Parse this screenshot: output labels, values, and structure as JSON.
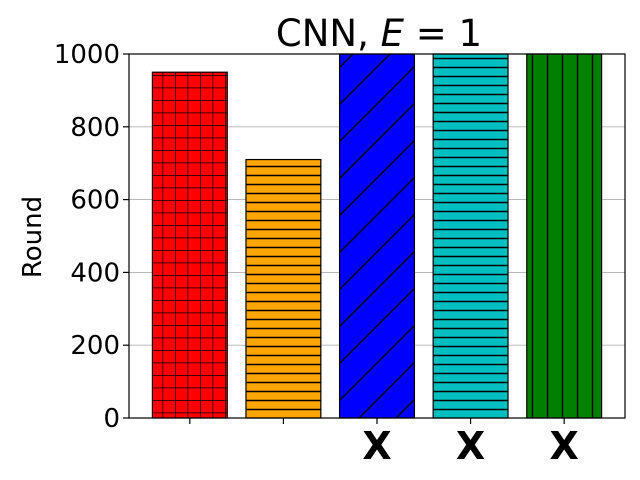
{
  "chart_data": {
    "type": "bar",
    "title_main": "CNN, ",
    "title_var": "E",
    "title_rest": " = 1",
    "xlabel": "",
    "ylabel": "Round",
    "ylim": [
      0,
      1000
    ],
    "yticks": [
      0,
      200,
      400,
      600,
      800,
      1000
    ],
    "grid": "horizontal",
    "bars": [
      {
        "value": 950,
        "color": "#ff0000",
        "hatch": "grid",
        "marker": ""
      },
      {
        "value": 710,
        "color": "#ffa500",
        "hatch": "horizontal",
        "marker": ""
      },
      {
        "value": 1000,
        "color": "#0000ff",
        "hatch": "diagonal",
        "marker": "X"
      },
      {
        "value": 1000,
        "color": "#00bfbf",
        "hatch": "horizontal",
        "marker": "X"
      },
      {
        "value": 1000,
        "color": "#008000",
        "hatch": "vertical",
        "marker": "X"
      }
    ]
  }
}
